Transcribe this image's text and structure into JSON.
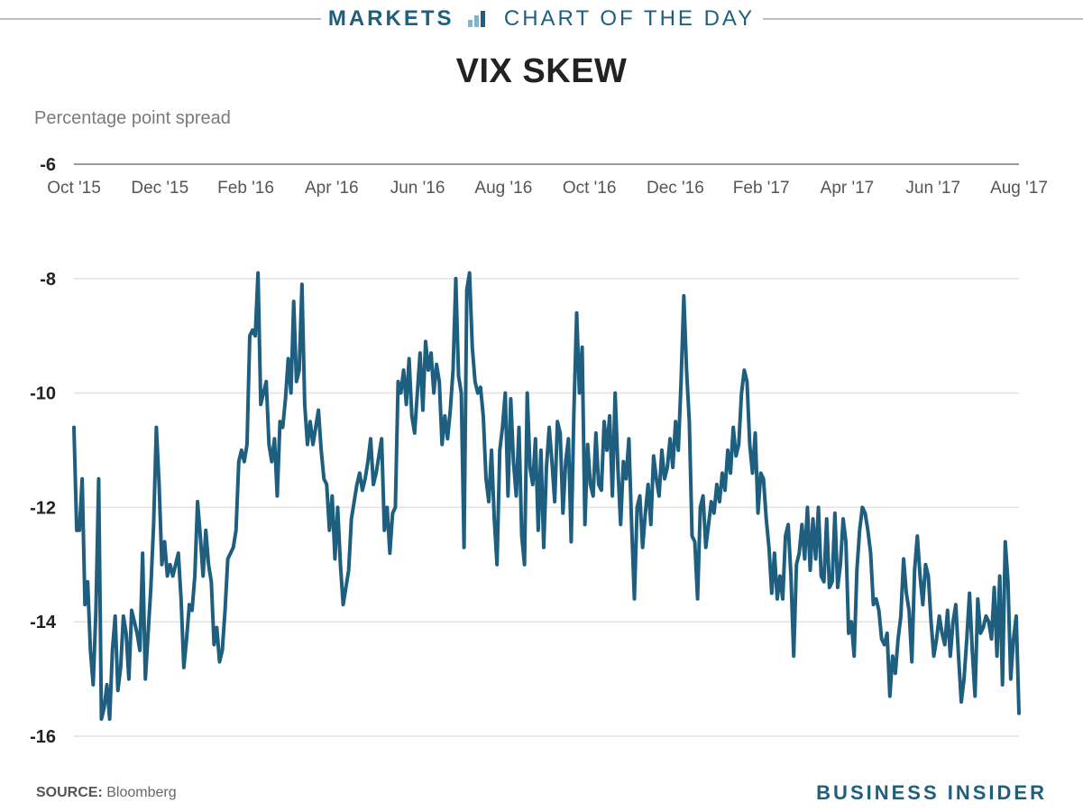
{
  "banner": {
    "section": "MARKETS",
    "subtitle": "CHART OF THE DAY"
  },
  "footer": {
    "source_label": "SOURCE:",
    "source_value": "Bloomberg",
    "brand": "BUSINESS INSIDER"
  },
  "colors": {
    "line": "#1e5f80",
    "banner": "#1e5f80",
    "grid": "#e2e2e2"
  },
  "chart_data": {
    "type": "line",
    "title": "VIX SKEW",
    "ylabel": "Percentage point spread",
    "xlabel": "",
    "ylim": [
      -16,
      -6
    ],
    "yticks": [
      -6,
      -8,
      -10,
      -12,
      -14,
      -16
    ],
    "xlim": [
      "2015-10-01",
      "2017-08-01"
    ],
    "xticks": [
      "Oct '15",
      "Dec '15",
      "Feb '16",
      "Apr '16",
      "Jun '16",
      "Aug '16",
      "Oct '16",
      "Dec '16",
      "Feb '17",
      "Apr '17",
      "Jun '17",
      "Aug '17"
    ],
    "grid": true,
    "series": [
      {
        "x_start": "2015-10-01",
        "x_end": "2017-08-01",
        "values": [
          -10.6,
          -12.4,
          -12.4,
          -11.5,
          -13.7,
          -13.3,
          -14.5,
          -15.1,
          -13.8,
          -11.5,
          -15.7,
          -15.5,
          -15.1,
          -15.7,
          -14.5,
          -13.9,
          -15.2,
          -14.8,
          -13.9,
          -14.2,
          -15.0,
          -13.8,
          -14.0,
          -14.2,
          -14.5,
          -12.8,
          -15.0,
          -14.2,
          -13.4,
          -12.3,
          -10.6,
          -11.6,
          -13.0,
          -12.6,
          -13.2,
          -13.0,
          -13.2,
          -13.0,
          -12.8,
          -13.6,
          -14.8,
          -14.3,
          -13.7,
          -13.8,
          -13.2,
          -11.9,
          -12.5,
          -13.2,
          -12.4,
          -13.0,
          -13.3,
          -14.4,
          -14.1,
          -14.7,
          -14.5,
          -13.8,
          -12.9,
          -12.8,
          -12.7,
          -12.4,
          -11.2,
          -11.0,
          -11.2,
          -10.9,
          -9.0,
          -8.9,
          -9.0,
          -7.9,
          -10.2,
          -10.0,
          -9.8,
          -10.9,
          -11.2,
          -10.8,
          -11.8,
          -10.5,
          -10.6,
          -10.1,
          -9.4,
          -10.0,
          -8.4,
          -9.8,
          -9.6,
          -8.1,
          -10.2,
          -10.9,
          -10.5,
          -10.9,
          -10.6,
          -10.3,
          -11.0,
          -11.5,
          -11.6,
          -12.4,
          -11.8,
          -12.9,
          -12.0,
          -13.0,
          -13.7,
          -13.4,
          -13.1,
          -12.2,
          -11.9,
          -11.6,
          -11.4,
          -11.7,
          -11.5,
          -11.2,
          -10.8,
          -11.6,
          -11.4,
          -11.1,
          -10.8,
          -12.4,
          -12.0,
          -12.8,
          -12.1,
          -12.0,
          -9.8,
          -10.0,
          -9.6,
          -10.2,
          -9.4,
          -10.4,
          -10.7,
          -10.0,
          -9.3,
          -10.3,
          -9.1,
          -9.6,
          -9.3,
          -10.0,
          -9.5,
          -9.8,
          -10.9,
          -10.4,
          -10.8,
          -10.3,
          -9.6,
          -8.0,
          -9.7,
          -10.0,
          -12.7,
          -8.2,
          -7.9,
          -9.2,
          -9.8,
          -10.0,
          -9.9,
          -10.4,
          -11.5,
          -11.9,
          -11.0,
          -12.2,
          -13.0,
          -11.0,
          -10.6,
          -10.0,
          -11.8,
          -10.1,
          -11.2,
          -11.8,
          -10.6,
          -12.5,
          -13.0,
          -10.0,
          -11.3,
          -11.6,
          -10.8,
          -12.4,
          -11.0,
          -12.7,
          -11.3,
          -10.6,
          -11.2,
          -11.9,
          -10.5,
          -10.7,
          -12.1,
          -11.2,
          -10.8,
          -12.6,
          -10.3,
          -8.6,
          -10.0,
          -9.2,
          -12.3,
          -10.9,
          -11.6,
          -11.8,
          -10.7,
          -11.6,
          -11.7,
          -10.5,
          -11.0,
          -10.4,
          -11.8,
          -10.0,
          -11.3,
          -12.3,
          -11.2,
          -11.5,
          -10.8,
          -12.3,
          -13.6,
          -12.0,
          -11.8,
          -12.7,
          -12.1,
          -11.6,
          -12.3,
          -11.1,
          -11.5,
          -11.8,
          -11.0,
          -11.5,
          -11.3,
          -10.8,
          -11.3,
          -10.5,
          -11.0,
          -9.8,
          -8.3,
          -9.6,
          -10.5,
          -12.5,
          -12.6,
          -13.6,
          -12.0,
          -11.8,
          -12.7,
          -12.3,
          -11.9,
          -12.1,
          -11.6,
          -11.9,
          -11.4,
          -11.7,
          -11.0,
          -11.4,
          -10.6,
          -11.1,
          -10.9,
          -10.0,
          -9.6,
          -9.8,
          -10.9,
          -11.4,
          -10.7,
          -12.1,
          -11.4,
          -11.5,
          -12.2,
          -12.7,
          -13.5,
          -12.8,
          -13.6,
          -13.2,
          -13.6,
          -12.5,
          -12.3,
          -13.2,
          -14.6,
          -13.0,
          -12.8,
          -12.3,
          -12.9,
          -12.0,
          -13.1,
          -12.2,
          -12.9,
          -12.0,
          -13.2,
          -13.3,
          -12.2,
          -13.4,
          -13.3,
          -12.1,
          -13.4,
          -13.0,
          -12.2,
          -12.6,
          -14.2,
          -14.0,
          -14.6,
          -13.1,
          -12.4,
          -12.0,
          -12.1,
          -12.4,
          -12.8,
          -13.7,
          -13.6,
          -13.8,
          -14.3,
          -14.4,
          -14.2,
          -15.3,
          -14.6,
          -14.9,
          -14.3,
          -13.9,
          -12.9,
          -13.5,
          -13.8,
          -14.7,
          -13.1,
          -12.5,
          -13.2,
          -13.7,
          -13.0,
          -13.2,
          -14.0,
          -14.6,
          -14.3,
          -13.9,
          -14.2,
          -14.4,
          -13.8,
          -14.6,
          -14.0,
          -13.7,
          -14.6,
          -15.4,
          -15.0,
          -14.3,
          -13.5,
          -14.5,
          -15.3,
          -13.6,
          -14.2,
          -14.1,
          -13.9,
          -14.0,
          -14.3,
          -13.4,
          -14.6,
          -13.2,
          -15.1,
          -12.6,
          -13.3,
          -15.0,
          -14.3,
          -13.9,
          -15.6
        ]
      }
    ]
  }
}
